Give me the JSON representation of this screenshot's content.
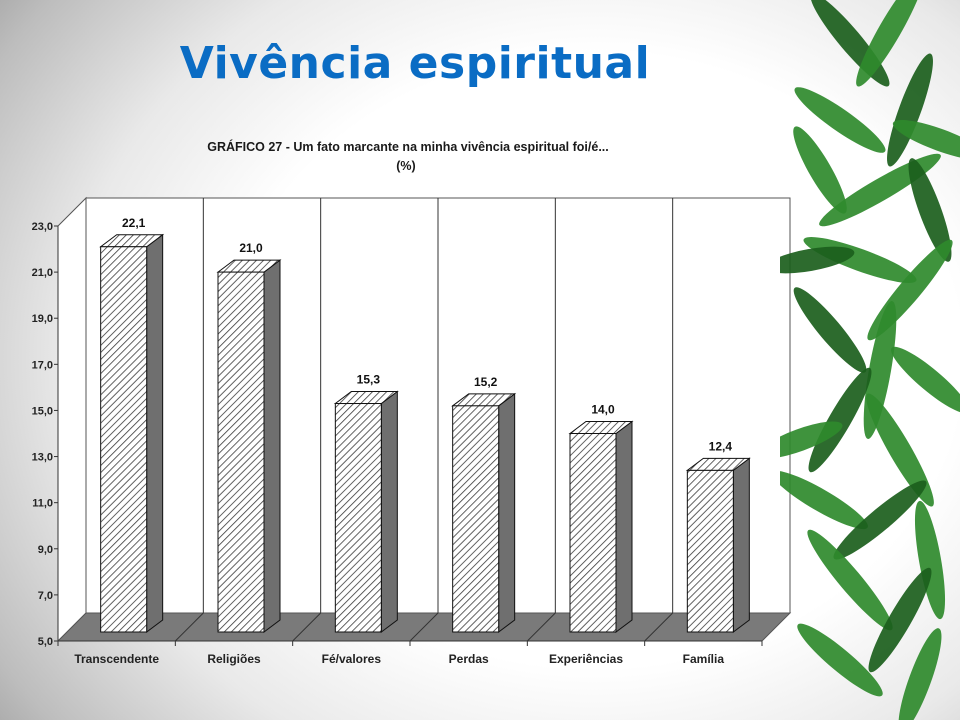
{
  "slide": {
    "title": "Vivência espiritual"
  },
  "colors": {
    "title": "#0a6cc4",
    "leaf": "#2f8a2c",
    "leaf_dark": "#1b5e1c",
    "bar_side": "#6f6f6f",
    "floor": "#7a7a7a"
  },
  "decoration": {
    "bamboo": "bamboo-leaves"
  },
  "chart_data": {
    "type": "bar",
    "title": "GRÁFICO 27 - Um fato marcante na minha vivência espiritual foi/é...",
    "subtitle": "(%)",
    "categories": [
      "Transcendente",
      "Religiões",
      "Fé/valores",
      "Perdas",
      "Experiências",
      "Família"
    ],
    "values": [
      22.1,
      21.0,
      15.3,
      15.2,
      14.0,
      12.4
    ],
    "value_labels": [
      "22,1",
      "21,0",
      "15,3",
      "15,2",
      "14,0",
      "12,4"
    ],
    "ylim": [
      5.0,
      23.0
    ],
    "yticks": [
      5.0,
      7.0,
      9.0,
      11.0,
      13.0,
      15.0,
      17.0,
      19.0,
      21.0,
      23.0
    ],
    "ytick_labels": [
      "5,0",
      "7,0",
      "9,0",
      "11,0",
      "13,0",
      "15,0",
      "17,0",
      "19,0",
      "21,0",
      "23,0"
    ],
    "xlabel": "",
    "ylabel": "",
    "grid": "vertical category separators",
    "legend": "none",
    "bar_fill": "diagonal hatch",
    "style": "3d"
  }
}
